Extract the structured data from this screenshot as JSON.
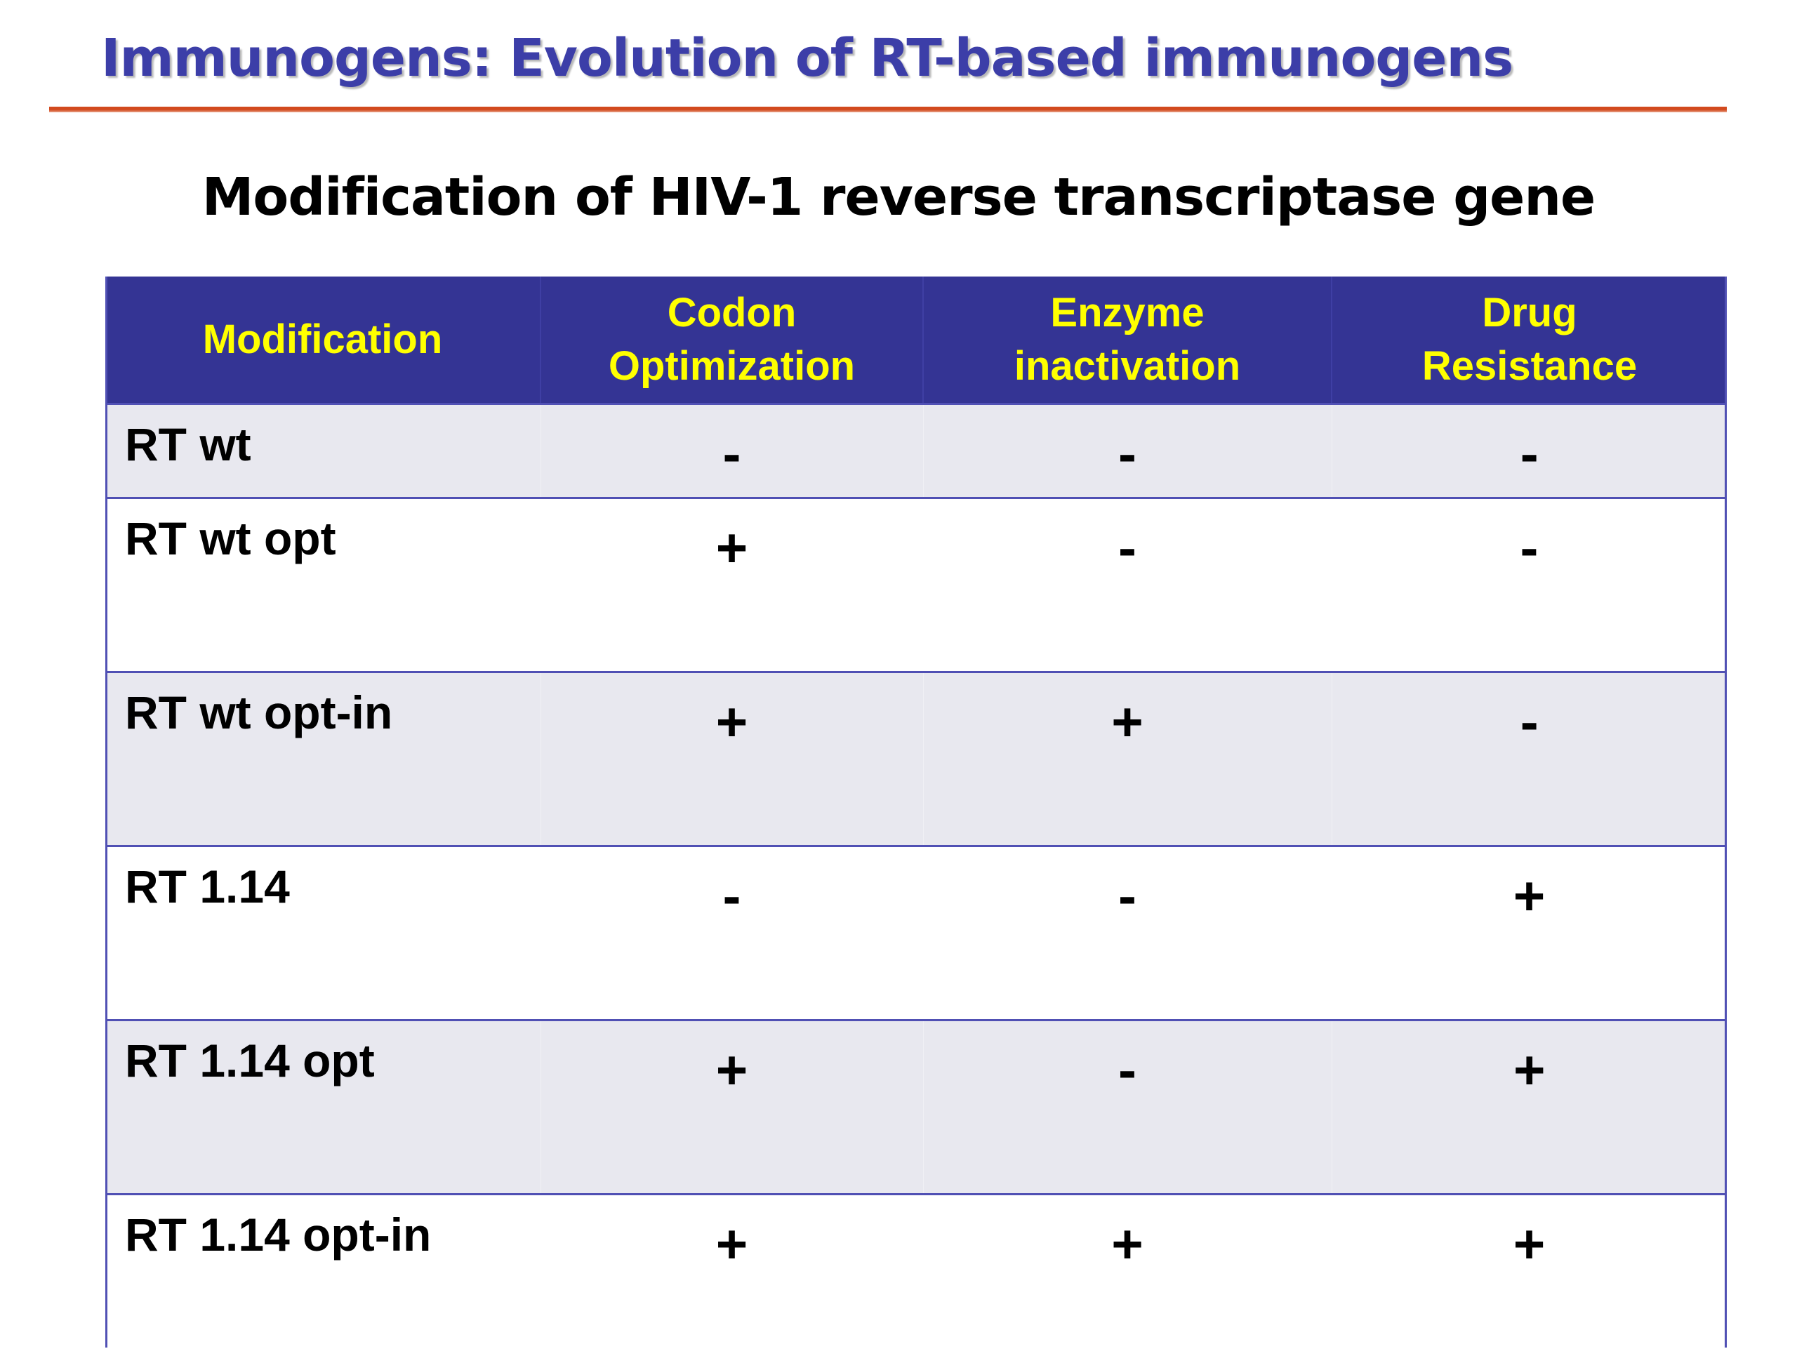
{
  "slide": {
    "title": "Immunogens: Evolution of RT-based immunogens",
    "subtitle": "Modification of HIV-1 reverse transcriptase gene"
  },
  "table": {
    "headers": {
      "modification": "Modification",
      "codon_line1": "Codon",
      "codon_line2": "Optimization",
      "enzyme_line1": "Enzyme",
      "enzyme_line2": "inactivation",
      "drug_line1": "Drug",
      "drug_line2": "Resistance"
    },
    "rows": [
      {
        "name": "RT wt",
        "codon": "-",
        "enzyme": "-",
        "drug": "-"
      },
      {
        "name": "RT wt opt",
        "codon": "+",
        "enzyme": "-",
        "drug": "-"
      },
      {
        "name": "RT wt opt-in",
        "codon": "+",
        "enzyme": "+",
        "drug": "-"
      },
      {
        "name": "RT 1.14",
        "codon": "-",
        "enzyme": "-",
        "drug": "+"
      },
      {
        "name": "RT 1.14 opt",
        "codon": "+",
        "enzyme": "-",
        "drug": "+"
      },
      {
        "name": "RT 1.14 opt-in",
        "codon": "+",
        "enzyme": "+",
        "drug": "+"
      }
    ]
  },
  "colors": {
    "title": "#3c3ea8",
    "rule": "#d24a1e",
    "header_bg": "#343494",
    "header_text": "#ffff00",
    "row_shaded": "#e8e8ef",
    "grid_line": "#5050b4"
  }
}
